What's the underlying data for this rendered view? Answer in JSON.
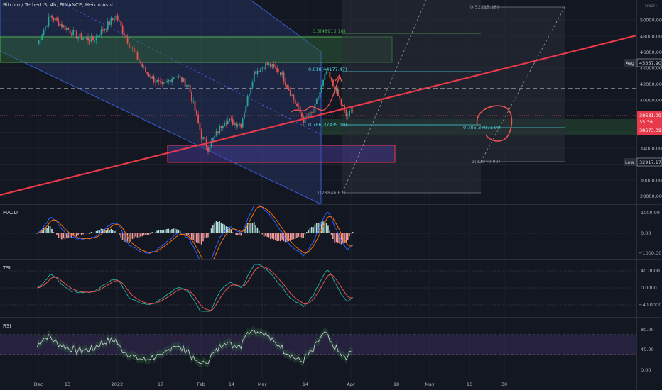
{
  "header": {
    "title": "Bitcoin / TetherUS, 4h, BINANCE, Heikin Ashi",
    "currency": "USDT"
  },
  "colors": {
    "background": "#131722",
    "grid": "#1e222d",
    "up": "#26a69a",
    "down": "#ef5350",
    "trendline": "#e8394a",
    "channel_fill": "#2d3e7a",
    "fib_fill": "#2e6b3a",
    "macd_line": "#2962ff",
    "signal_line": "#ff6d00",
    "tsi_line": "#26a69a",
    "tsi_signal": "#ef5350",
    "rsi_line": "#b2b5be",
    "rsi_band": "#7e57c2"
  },
  "axis": {
    "price_ticks": [
      "50000.00",
      "48000.00",
      "46000.00",
      "44000.00",
      "42000.00",
      "40000.00",
      "36000.00",
      "34000.00",
      "32000.00",
      "30000.00",
      "28000.00"
    ],
    "time_ticks": [
      "Dec",
      "13",
      "2022",
      "17",
      "Feb",
      "14",
      "Mar",
      "14",
      "Apr",
      "18",
      "May",
      "16",
      "30"
    ]
  },
  "price_tags": {
    "avg_label": "Avg",
    "avg_value": "45357.90",
    "current_price": "38681.09",
    "countdown": "35:39",
    "current_price2": "38673.09",
    "low_label": "Low",
    "low_value": "32917.17"
  },
  "fib_labels": {
    "left": [
      "0.5(48913.18)",
      "0.618(44177.47)",
      "0.786(37435.10)",
      "1(28846.61)"
    ],
    "right": [
      "0(52215.26)",
      "0.786(37071.98)",
      "1(32949.00)"
    ]
  },
  "panes": {
    "macd": {
      "title": "MACD",
      "ticks": [
        "1000.00",
        "0.00",
        "−1000.00"
      ]
    },
    "tsi": {
      "title": "TSI",
      "ticks": [
        "40.0000",
        "0.0000",
        "−40.0000"
      ]
    },
    "rsi": {
      "title": "RSI",
      "ticks": [
        "80.00",
        "40.00",
        "0.00"
      ]
    }
  },
  "chart_data": {
    "type": "candlestick",
    "title": "Bitcoin / TetherUS, 4h, BINANCE, Heikin Ashi",
    "price_range": [
      27000,
      52500
    ],
    "approx_close_path": [
      {
        "date": "Dec 3",
        "price": 47000
      },
      {
        "date": "Dec 7",
        "price": 50500
      },
      {
        "date": "Dec 10",
        "price": 49500
      },
      {
        "date": "Dec 15",
        "price": 48000
      },
      {
        "date": "Dec 20",
        "price": 47500
      },
      {
        "date": "Dec 27",
        "price": 50500
      },
      {
        "date": "Dec 31",
        "price": 47000
      },
      {
        "date": "Jan 5",
        "price": 43500
      },
      {
        "date": "Jan 10",
        "price": 41700
      },
      {
        "date": "Jan 14",
        "price": 43200
      },
      {
        "date": "Jan 18",
        "price": 41800
      },
      {
        "date": "Jan 22",
        "price": 35500
      },
      {
        "date": "Jan 24",
        "price": 34000
      },
      {
        "date": "Jan 29",
        "price": 37500
      },
      {
        "date": "Feb 3",
        "price": 37000
      },
      {
        "date": "Feb 7",
        "price": 43500
      },
      {
        "date": "Feb 11",
        "price": 44500
      },
      {
        "date": "Feb 15",
        "price": 43500
      },
      {
        "date": "Feb 18",
        "price": 41000
      },
      {
        "date": "Feb 22",
        "price": 37500
      },
      {
        "date": "Feb 25",
        "price": 38500
      },
      {
        "date": "Mar 1",
        "price": 43500
      },
      {
        "date": "Mar 4",
        "price": 41000
      },
      {
        "date": "Mar 7",
        "price": 38000
      },
      {
        "date": "Mar 9",
        "price": 38681
      }
    ],
    "indicators": {
      "macd_range": [
        -1400,
        1400
      ],
      "tsi_range": [
        -60,
        60
      ],
      "rsi_range": [
        0,
        100
      ],
      "rsi_band": [
        30,
        70
      ]
    }
  }
}
